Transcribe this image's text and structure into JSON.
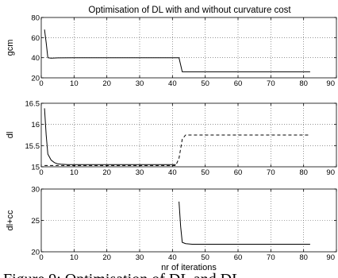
{
  "figure": {
    "caption": "Figure 9: Optimisation of DL and DL"
  },
  "chart_data": [
    {
      "type": "line",
      "title": "Optimisation of DL with and without curvature cost",
      "xlabel": "",
      "ylabel": "gcm",
      "xlim": [
        0,
        90
      ],
      "ylim": [
        20,
        80
      ],
      "xticks": [
        0,
        10,
        20,
        30,
        40,
        50,
        60,
        70,
        80,
        90
      ],
      "yticks": [
        20,
        40,
        60,
        80
      ],
      "ytick_labels": [
        "20",
        "40",
        "60",
        "80"
      ],
      "grid": true,
      "series": [
        {
          "style": "solid",
          "x": [
            1,
            1.5,
            2,
            3,
            5,
            10,
            20,
            30,
            41,
            42,
            43,
            50,
            60,
            70,
            82
          ],
          "y": [
            68,
            55,
            40,
            39.5,
            39.8,
            40,
            40,
            40,
            40,
            40,
            26,
            26,
            26,
            26,
            26
          ]
        }
      ]
    },
    {
      "type": "line",
      "title": "",
      "xlabel": "",
      "ylabel": "dl",
      "xlim": [
        0,
        90
      ],
      "ylim": [
        15,
        16.5
      ],
      "xticks": [
        0,
        10,
        20,
        30,
        40,
        50,
        60,
        70,
        80,
        90
      ],
      "yticks": [
        15,
        15.5,
        16,
        16.5
      ],
      "ytick_labels": [
        "15",
        "15.5",
        "16",
        "16.5"
      ],
      "grid": true,
      "series": [
        {
          "style": "solid",
          "x": [
            1,
            1.5,
            2,
            3,
            4,
            5,
            6,
            8,
            10,
            20,
            30,
            41
          ],
          "y": [
            16.38,
            15.75,
            15.3,
            15.16,
            15.1,
            15.07,
            15.06,
            15.05,
            15.05,
            15.05,
            15.05,
            15.05
          ]
        },
        {
          "style": "dashed",
          "x": [
            1,
            10,
            20,
            30,
            41,
            42,
            43,
            44,
            50,
            60,
            70,
            82
          ],
          "y": [
            15.03,
            15.03,
            15.03,
            15.03,
            15.03,
            15.2,
            15.65,
            15.75,
            15.75,
            15.75,
            15.75,
            15.75
          ]
        }
      ]
    },
    {
      "type": "line",
      "title": "",
      "xlabel": "nr of iterations",
      "ylabel": "dl+cc",
      "xlim": [
        0,
        90
      ],
      "ylim": [
        20,
        30
      ],
      "xticks": [
        0,
        10,
        20,
        30,
        40,
        50,
        60,
        70,
        80,
        90
      ],
      "yticks": [
        20,
        25,
        30
      ],
      "ytick_labels": [
        "20",
        "25",
        "30"
      ],
      "grid": true,
      "series": [
        {
          "style": "solid",
          "x": [
            42,
            42.5,
            43,
            44,
            46,
            50,
            60,
            70,
            82
          ],
          "y": [
            28,
            24,
            21.5,
            21.3,
            21.2,
            21.2,
            21.2,
            21.2,
            21.2
          ]
        }
      ]
    }
  ]
}
